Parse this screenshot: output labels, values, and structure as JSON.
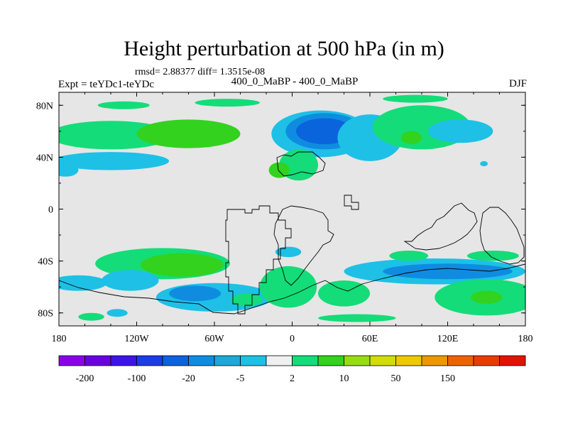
{
  "header": {
    "title": "Height perturbation at 500 hPa (in m)",
    "rmsd_text": "rmsd= 2.88377 diff= 1.3515e-08",
    "left_string": "Expt = teYDc1-teYDc",
    "center_string": "400_0_MaBP - 400_0_MaBP",
    "right_string": "DJF"
  },
  "chart_data": {
    "type": "heatmap",
    "title": "Height perturbation at 500 hPa (in m)",
    "xlim": [
      -180,
      180
    ],
    "ylim": [
      -90,
      90
    ],
    "x_ticks": [
      {
        "value": -180,
        "label": "180"
      },
      {
        "value": -120,
        "label": "120W"
      },
      {
        "value": -60,
        "label": "60W"
      },
      {
        "value": 0,
        "label": "0"
      },
      {
        "value": 60,
        "label": "60E"
      },
      {
        "value": 120,
        "label": "120E"
      },
      {
        "value": 180,
        "label": "180"
      }
    ],
    "y_ticks": [
      {
        "value": 80,
        "label": "80N"
      },
      {
        "value": 40,
        "label": "40N"
      },
      {
        "value": 0,
        "label": "0"
      },
      {
        "value": -40,
        "label": "40S"
      },
      {
        "value": -80,
        "label": "80S"
      }
    ],
    "background_color": "#e6e6e6",
    "colorbar": {
      "colors": [
        "#8c00e8",
        "#6a00e0",
        "#3c14e4",
        "#1a3ce6",
        "#0a64dc",
        "#0f8ce0",
        "#1ea8dc",
        "#1ec0e6",
        "#f0f0f0",
        "#14dc78",
        "#32d21e",
        "#96dc14",
        "#d2dc0a",
        "#f0c800",
        "#f09600",
        "#ec6400",
        "#e83c00",
        "#e01400"
      ],
      "labels": [
        {
          "boundary": 1,
          "text": "-200"
        },
        {
          "boundary": 3,
          "text": "-100"
        },
        {
          "boundary": 5,
          "text": "-20"
        },
        {
          "boundary": 7,
          "text": "-5"
        },
        {
          "boundary": 9,
          "text": "2"
        },
        {
          "boundary": 11,
          "text": "10"
        },
        {
          "boundary": 13,
          "text": "50"
        },
        {
          "boundary": 15,
          "text": "150"
        }
      ]
    },
    "anomalies": [
      {
        "lon": -140,
        "lat": 57,
        "rx": 48,
        "ry": 11,
        "level": "pos1"
      },
      {
        "lon": -80,
        "lat": 58,
        "rx": 40,
        "ry": 11,
        "level": "pos2"
      },
      {
        "lon": -140,
        "lat": 37,
        "rx": 45,
        "ry": 7,
        "level": "neg1"
      },
      {
        "lon": -175,
        "lat": 30,
        "rx": 10,
        "ry": 5,
        "level": "neg1"
      },
      {
        "lon": -130,
        "lat": 80,
        "rx": 20,
        "ry": 3,
        "level": "pos1"
      },
      {
        "lon": -50,
        "lat": 82,
        "rx": 25,
        "ry": 3,
        "level": "pos1"
      },
      {
        "lon": 22,
        "lat": 58,
        "rx": 38,
        "ry": 18,
        "level": "neg1"
      },
      {
        "lon": 25,
        "lat": 60,
        "rx": 30,
        "ry": 14,
        "level": "neg2"
      },
      {
        "lon": 25,
        "lat": 60,
        "rx": 22,
        "ry": 10,
        "level": "neg3"
      },
      {
        "lon": 5,
        "lat": 34,
        "rx": 15,
        "ry": 12,
        "level": "pos1"
      },
      {
        "lon": -10,
        "lat": 30,
        "rx": 8,
        "ry": 6,
        "level": "pos2"
      },
      {
        "lon": 60,
        "lat": 55,
        "rx": 25,
        "ry": 18,
        "level": "neg1"
      },
      {
        "lon": 100,
        "lat": 63,
        "rx": 38,
        "ry": 17,
        "level": "pos1"
      },
      {
        "lon": 92,
        "lat": 55,
        "rx": 8,
        "ry": 5,
        "level": "pos2"
      },
      {
        "lon": 95,
        "lat": 85,
        "rx": 25,
        "ry": 3,
        "level": "pos1"
      },
      {
        "lon": 130,
        "lat": 60,
        "rx": 25,
        "ry": 9,
        "level": "neg1"
      },
      {
        "lon": 142,
        "lat": 58,
        "rx": 5,
        "ry": 3,
        "level": "neg1"
      },
      {
        "lon": 148,
        "lat": 35,
        "rx": 3,
        "ry": 2,
        "level": "neg1"
      },
      {
        "lon": -100,
        "lat": -42,
        "rx": 52,
        "ry": 12,
        "level": "pos1"
      },
      {
        "lon": -85,
        "lat": -43,
        "rx": 32,
        "ry": 9,
        "level": "pos2"
      },
      {
        "lon": -165,
        "lat": -57,
        "rx": 22,
        "ry": 6,
        "level": "neg1"
      },
      {
        "lon": -125,
        "lat": -55,
        "rx": 22,
        "ry": 8,
        "level": "neg1"
      },
      {
        "lon": -60,
        "lat": -68,
        "rx": 45,
        "ry": 11,
        "level": "neg1"
      },
      {
        "lon": -75,
        "lat": -65,
        "rx": 20,
        "ry": 6,
        "level": "neg2"
      },
      {
        "lon": -35,
        "lat": -70,
        "rx": 12,
        "ry": 5,
        "level": "pos1"
      },
      {
        "lon": -155,
        "lat": -83,
        "rx": 10,
        "ry": 3,
        "level": "pos1"
      },
      {
        "lon": -135,
        "lat": -80,
        "rx": 8,
        "ry": 3,
        "level": "neg1"
      },
      {
        "lon": -3,
        "lat": -60,
        "rx": 22,
        "ry": 16,
        "level": "pos1"
      },
      {
        "lon": -3,
        "lat": -33,
        "rx": 10,
        "ry": 4,
        "level": "neg1"
      },
      {
        "lon": 40,
        "lat": -65,
        "rx": 20,
        "ry": 10,
        "level": "pos1"
      },
      {
        "lon": 110,
        "lat": -48,
        "rx": 70,
        "ry": 10,
        "level": "neg1"
      },
      {
        "lon": 120,
        "lat": -48,
        "rx": 50,
        "ry": 6,
        "level": "neg2"
      },
      {
        "lon": 90,
        "lat": -36,
        "rx": 15,
        "ry": 4,
        "level": "pos1"
      },
      {
        "lon": 155,
        "lat": -36,
        "rx": 20,
        "ry": 4,
        "level": "pos1"
      },
      {
        "lon": 150,
        "lat": -68,
        "rx": 40,
        "ry": 14,
        "level": "pos1"
      },
      {
        "lon": 150,
        "lat": -68,
        "rx": 12,
        "ry": 5,
        "level": "pos2"
      },
      {
        "lon": 50,
        "lat": -84,
        "rx": 30,
        "ry": 3,
        "level": "pos1"
      }
    ],
    "level_colors": {
      "neg1": "#1ec0e6",
      "neg2": "#0f8ce0",
      "neg3": "#0a64dc",
      "pos1": "#14dc78",
      "pos2": "#32d21e"
    }
  }
}
